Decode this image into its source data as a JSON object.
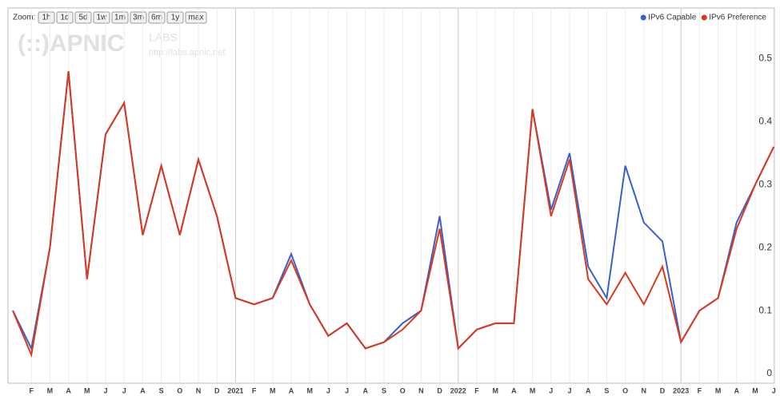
{
  "zoom_label": "Zoom:",
  "zoom_buttons": [
    "1h",
    "1d",
    "5d",
    "1w",
    "1m",
    "3m",
    "6m",
    "1y",
    "max"
  ],
  "watermark": {
    "logo": "(::)APNIC",
    "labs": "LABS",
    "url": "http://labs.apnic.net"
  },
  "chart_data": {
    "type": "line",
    "x": [
      "2020-01",
      "2020-02",
      "2020-03",
      "2020-04",
      "2020-05",
      "2020-06",
      "2020-07",
      "2020-08",
      "2020-09",
      "2020-10",
      "2020-11",
      "2020-12",
      "2021-01",
      "2021-02",
      "2021-03",
      "2021-04",
      "2021-05",
      "2021-06",
      "2021-07",
      "2021-08",
      "2021-09",
      "2021-10",
      "2021-11",
      "2021-12",
      "2022-01",
      "2022-02",
      "2022-03",
      "2022-04",
      "2022-05",
      "2022-06",
      "2022-07",
      "2022-08",
      "2022-09",
      "2022-10",
      "2022-11",
      "2022-12",
      "2023-01",
      "2023-02",
      "2023-03",
      "2023-04",
      "2023-05",
      "2023-06"
    ],
    "series": [
      {
        "name": "IPv6 Capable",
        "color": "#3a5fcd",
        "values": [
          0.1,
          0.04,
          0.2,
          0.48,
          0.15,
          0.38,
          0.43,
          0.22,
          0.33,
          0.22,
          0.34,
          0.25,
          0.12,
          0.11,
          0.12,
          0.19,
          0.11,
          0.06,
          0.08,
          0.04,
          0.05,
          0.08,
          0.1,
          0.25,
          0.04,
          0.07,
          0.08,
          0.08,
          0.42,
          0.26,
          0.35,
          0.17,
          0.12,
          0.33,
          0.24,
          0.21,
          0.05,
          0.1,
          0.12,
          0.24,
          0.3,
          0.36
        ]
      },
      {
        "name": "IPv6 Preference",
        "color": "#d9391c",
        "values": [
          0.1,
          0.03,
          0.2,
          0.48,
          0.15,
          0.38,
          0.43,
          0.22,
          0.33,
          0.22,
          0.34,
          0.25,
          0.12,
          0.11,
          0.12,
          0.18,
          0.11,
          0.06,
          0.08,
          0.04,
          0.05,
          0.07,
          0.1,
          0.23,
          0.04,
          0.07,
          0.08,
          0.08,
          0.42,
          0.25,
          0.34,
          0.15,
          0.11,
          0.16,
          0.11,
          0.17,
          0.05,
          0.1,
          0.12,
          0.23,
          0.3,
          0.36
        ]
      }
    ],
    "ylim": [
      0,
      0.545
    ],
    "yticks": [
      0,
      0.1,
      0.2,
      0.3,
      0.4,
      0.5
    ],
    "xticks": [
      {
        "value": "2020-02",
        "label": "F"
      },
      {
        "value": "2020-03",
        "label": "M"
      },
      {
        "value": "2020-04",
        "label": "A"
      },
      {
        "value": "2020-05",
        "label": "M"
      },
      {
        "value": "2020-06",
        "label": "J"
      },
      {
        "value": "2020-07",
        "label": "J"
      },
      {
        "value": "2020-08",
        "label": "A"
      },
      {
        "value": "2020-09",
        "label": "S"
      },
      {
        "value": "2020-10",
        "label": "O"
      },
      {
        "value": "2020-11",
        "label": "N"
      },
      {
        "value": "2020-12",
        "label": "D"
      },
      {
        "value": "2021-01",
        "label": "2021"
      },
      {
        "value": "2021-02",
        "label": "F"
      },
      {
        "value": "2021-03",
        "label": "M"
      },
      {
        "value": "2021-04",
        "label": "A"
      },
      {
        "value": "2021-05",
        "label": "M"
      },
      {
        "value": "2021-06",
        "label": "J"
      },
      {
        "value": "2021-07",
        "label": "J"
      },
      {
        "value": "2021-08",
        "label": "A"
      },
      {
        "value": "2021-09",
        "label": "S"
      },
      {
        "value": "2021-10",
        "label": "O"
      },
      {
        "value": "2021-11",
        "label": "N"
      },
      {
        "value": "2021-12",
        "label": "D"
      },
      {
        "value": "2022-01",
        "label": "2022"
      },
      {
        "value": "2022-02",
        "label": "F"
      },
      {
        "value": "2022-03",
        "label": "M"
      },
      {
        "value": "2022-04",
        "label": "A"
      },
      {
        "value": "2022-05",
        "label": "M"
      },
      {
        "value": "2022-06",
        "label": "J"
      },
      {
        "value": "2022-07",
        "label": "J"
      },
      {
        "value": "2022-08",
        "label": "A"
      },
      {
        "value": "2022-09",
        "label": "S"
      },
      {
        "value": "2022-10",
        "label": "O"
      },
      {
        "value": "2022-11",
        "label": "N"
      },
      {
        "value": "2022-12",
        "label": "D"
      },
      {
        "value": "2023-01",
        "label": "2023"
      },
      {
        "value": "2023-02",
        "label": "F"
      },
      {
        "value": "2023-03",
        "label": "M"
      },
      {
        "value": "2023-04",
        "label": "A"
      },
      {
        "value": "2023-05",
        "label": "M"
      },
      {
        "value": "2023-06",
        "label": "J"
      }
    ],
    "grid": true,
    "legend": "top-right"
  }
}
